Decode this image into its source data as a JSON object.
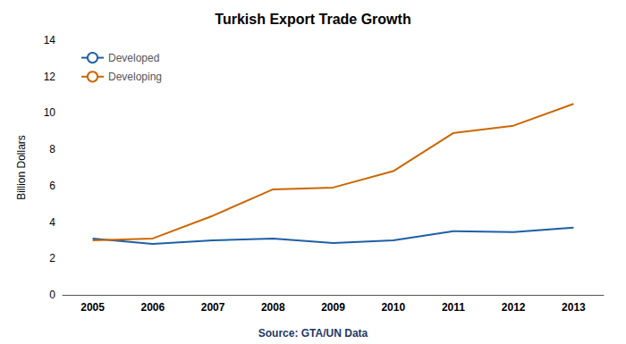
{
  "chart_data": {
    "type": "line",
    "title": "Turkish Export Trade Growth",
    "source": "Source: GTA/UN Data",
    "ylabel": "Billion Dollars",
    "categories": [
      "2005",
      "2006",
      "2007",
      "2008",
      "2009",
      "2010",
      "2011",
      "2012",
      "2013"
    ],
    "series": [
      {
        "name": "Developed",
        "color": "#1F5FA6",
        "values": [
          3.1,
          2.8,
          3.0,
          3.1,
          2.85,
          3.0,
          3.5,
          3.45,
          3.7
        ]
      },
      {
        "name": "Developing",
        "color": "#CC6600",
        "values": [
          3.0,
          3.1,
          4.35,
          5.8,
          5.9,
          6.8,
          8.9,
          9.3,
          10.5
        ]
      }
    ],
    "ylim": [
      0,
      14
    ],
    "yticks": [
      0,
      2,
      4,
      6,
      8,
      10,
      12,
      14
    ],
    "grid": false,
    "legend": "upper left"
  }
}
